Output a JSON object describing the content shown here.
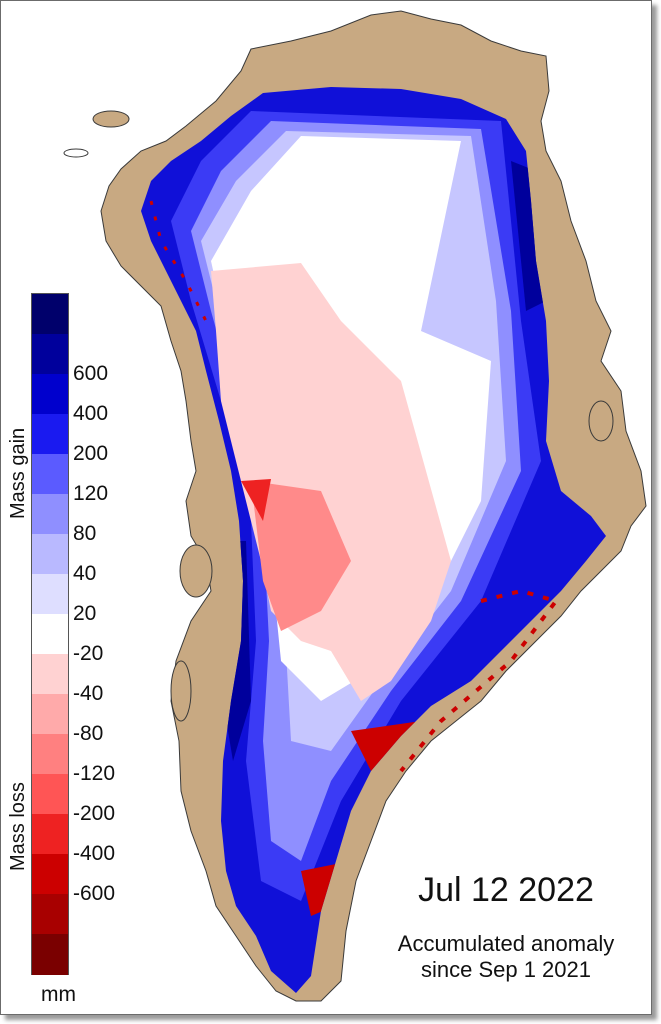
{
  "map": {
    "date": "Jul 12 2022",
    "note_line1": "Accumulated anomaly",
    "note_line2": "since Sep 1 2021",
    "land_color": "#c8a982",
    "coast_color": "#3a3a3a"
  },
  "legend": {
    "gain_title": "Mass gain",
    "loss_title": "Mass loss",
    "unit": "mm",
    "colors": [
      "#00006b",
      "#00009c",
      "#0000cd",
      "#1a1af0",
      "#5b5bff",
      "#8f8fff",
      "#b9b9ff",
      "#dedeff",
      "#ffffff",
      "#ffd2d2",
      "#ffaaaa",
      "#ff8080",
      "#ff5555",
      "#ee2222",
      "#cc0000",
      "#a80000",
      "#7a0000"
    ],
    "ticks": [
      "600",
      "400",
      "200",
      "120",
      "80",
      "40",
      "20",
      "-20",
      "-40",
      "-80",
      "-120",
      "-200",
      "-400",
      "-600"
    ]
  }
}
